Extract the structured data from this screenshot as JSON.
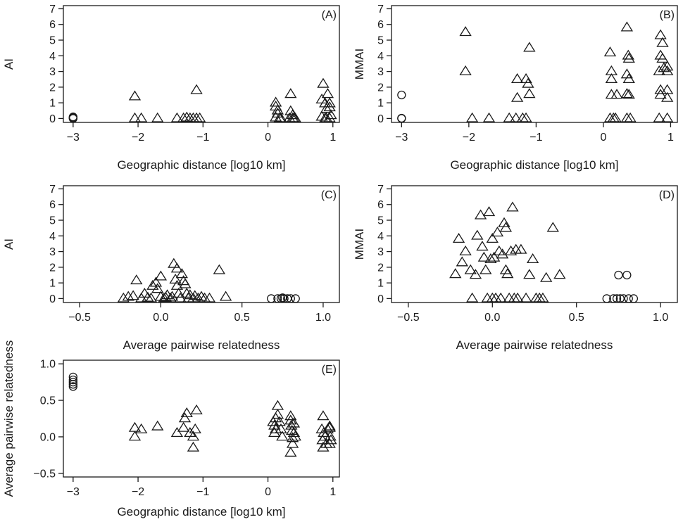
{
  "chart_data": [
    {
      "panel": "(A)",
      "type": "scatter",
      "xlabel": "Geographic distance [log10 km]",
      "ylabel": "AI",
      "xlim": [
        -3.15,
        1.1
      ],
      "ylim": [
        -0.25,
        7.2
      ],
      "xticks": [
        -3,
        -2,
        -1,
        0,
        1
      ],
      "yticks": [
        0,
        1,
        2,
        3,
        4,
        5,
        6,
        7
      ],
      "grid": false,
      "series": [
        {
          "marker": "circle",
          "points": [
            [
              -3,
              0
            ],
            [
              -3,
              0.05
            ],
            [
              -3,
              0.1
            ],
            [
              -3,
              0.02
            ]
          ]
        },
        {
          "marker": "triangle",
          "points": [
            [
              -2.05,
              1.4
            ],
            [
              -2.05,
              0
            ],
            [
              -1.95,
              0
            ],
            [
              -1.7,
              0
            ],
            [
              -1.4,
              0
            ],
            [
              -1.3,
              0
            ],
            [
              -1.25,
              0.05
            ],
            [
              -1.2,
              0
            ],
            [
              -1.15,
              0
            ],
            [
              -1.1,
              0
            ],
            [
              -1.1,
              1.8
            ],
            [
              -1.05,
              0
            ],
            [
              0.12,
              1
            ],
            [
              0.12,
              0.75
            ],
            [
              0.15,
              0.5
            ],
            [
              0.15,
              0.3
            ],
            [
              0.12,
              0.05
            ],
            [
              0.18,
              0
            ],
            [
              0.2,
              0
            ],
            [
              0.35,
              1.55
            ],
            [
              0.35,
              0.45
            ],
            [
              0.38,
              0.2
            ],
            [
              0.38,
              0
            ],
            [
              0.4,
              0
            ],
            [
              0.33,
              0
            ],
            [
              0.42,
              0
            ],
            [
              0.85,
              2.2
            ],
            [
              0.83,
              1.2
            ],
            [
              0.88,
              0.95
            ],
            [
              0.9,
              0.6
            ],
            [
              0.83,
              0.1
            ],
            [
              0.88,
              0
            ],
            [
              0.9,
              0
            ],
            [
              0.92,
              1.55
            ],
            [
              0.95,
              0.95
            ],
            [
              0.95,
              0.7
            ],
            [
              0.97,
              0.2
            ],
            [
              0.95,
              0
            ]
          ]
        }
      ]
    },
    {
      "panel": "(B)",
      "type": "scatter",
      "xlabel": "Geographic distance [log10 km]",
      "ylabel": "MMAI",
      "xlim": [
        -3.15,
        1.1
      ],
      "ylim": [
        -0.25,
        7.2
      ],
      "xticks": [
        -3,
        -2,
        -1,
        0,
        1
      ],
      "yticks": [
        0,
        1,
        2,
        3,
        4,
        5,
        6,
        7
      ],
      "grid": false,
      "series": [
        {
          "marker": "circle",
          "points": [
            [
              -3,
              1.5
            ],
            [
              -3,
              0
            ],
            [
              -3,
              0.02
            ]
          ]
        },
        {
          "marker": "triangle",
          "points": [
            [
              -2.05,
              5.5
            ],
            [
              -2.05,
              3
            ],
            [
              -1.95,
              0
            ],
            [
              -1.7,
              0
            ],
            [
              -1.4,
              0
            ],
            [
              -1.3,
              0
            ],
            [
              -1.28,
              2.5
            ],
            [
              -1.28,
              1.3
            ],
            [
              -1.2,
              0
            ],
            [
              -1.15,
              2.5
            ],
            [
              -1.12,
              2.2
            ],
            [
              -1.1,
              4.5
            ],
            [
              -1.1,
              1.55
            ],
            [
              -1.15,
              0
            ],
            [
              0.1,
              4.2
            ],
            [
              0.12,
              3
            ],
            [
              0.12,
              2.5
            ],
            [
              0.12,
              1.5
            ],
            [
              0.1,
              0
            ],
            [
              0.15,
              0
            ],
            [
              0.18,
              0
            ],
            [
              0.2,
              1.5
            ],
            [
              0.35,
              5.8
            ],
            [
              0.37,
              4
            ],
            [
              0.38,
              3.8
            ],
            [
              0.35,
              2.8
            ],
            [
              0.38,
              2.5
            ],
            [
              0.35,
              1.55
            ],
            [
              0.38,
              1.5
            ],
            [
              0.35,
              0
            ],
            [
              0.4,
              0
            ],
            [
              0.85,
              5.3
            ],
            [
              0.85,
              4
            ],
            [
              0.83,
              3
            ],
            [
              0.85,
              1.8
            ],
            [
              0.85,
              1.5
            ],
            [
              0.83,
              0
            ],
            [
              0.88,
              4.8
            ],
            [
              0.88,
              3.8
            ],
            [
              0.9,
              3.2
            ],
            [
              0.95,
              3.3
            ],
            [
              0.95,
              3
            ],
            [
              0.95,
              1.8
            ],
            [
              0.95,
              1.3
            ],
            [
              0.95,
              0
            ]
          ]
        }
      ]
    },
    {
      "panel": "(C)",
      "type": "scatter",
      "xlabel": "Average pairwise relatedness",
      "ylabel": "AI",
      "xlim": [
        -0.6,
        1.1
      ],
      "ylim": [
        -0.25,
        7.2
      ],
      "xticks": [
        -0.5,
        0.0,
        0.5,
        1.0
      ],
      "xtick_labels": [
        "−0.5",
        "0.0",
        "0.5",
        "1.0"
      ],
      "yticks": [
        0,
        1,
        2,
        3,
        4,
        5,
        6,
        7
      ],
      "grid": false,
      "series": [
        {
          "marker": "circle",
          "points": [
            [
              0.68,
              0
            ],
            [
              0.72,
              0
            ],
            [
              0.74,
              0
            ],
            [
              0.75,
              0.05
            ],
            [
              0.76,
              0
            ],
            [
              0.78,
              0
            ],
            [
              0.8,
              0
            ],
            [
              0.83,
              0
            ]
          ]
        },
        {
          "marker": "triangle",
          "points": [
            [
              -0.23,
              0
            ],
            [
              -0.2,
              0.1
            ],
            [
              -0.17,
              0.15
            ],
            [
              -0.15,
              1.15
            ],
            [
              -0.12,
              0
            ],
            [
              -0.1,
              0.3
            ],
            [
              -0.08,
              0.05
            ],
            [
              -0.06,
              0
            ],
            [
              -0.05,
              0.8
            ],
            [
              -0.03,
              1.0
            ],
            [
              -0.02,
              0.6
            ],
            [
              0,
              1.4
            ],
            [
              0,
              0.1
            ],
            [
              0.02,
              0
            ],
            [
              0.03,
              0.05
            ],
            [
              0.04,
              0.2
            ],
            [
              0.06,
              0
            ],
            [
              0.07,
              0.1
            ],
            [
              0.08,
              2.2
            ],
            [
              0.09,
              1.2
            ],
            [
              0.1,
              1.9
            ],
            [
              0.1,
              0.8
            ],
            [
              0.11,
              0.3
            ],
            [
              0.12,
              0
            ],
            [
              0.13,
              1.55
            ],
            [
              0.14,
              1.1
            ],
            [
              0.15,
              0.9
            ],
            [
              0.16,
              0.3
            ],
            [
              0.17,
              0
            ],
            [
              0.18,
              0.2
            ],
            [
              0.2,
              0
            ],
            [
              0.21,
              0.15
            ],
            [
              0.23,
              0
            ],
            [
              0.25,
              0.1
            ],
            [
              0.27,
              0
            ],
            [
              0.3,
              0
            ],
            [
              0.36,
              1.8
            ],
            [
              0.4,
              0.1
            ]
          ]
        }
      ]
    },
    {
      "panel": "(D)",
      "type": "scatter",
      "xlabel": "Average pairwise relatedness",
      "ylabel": "MMAI",
      "xlim": [
        -0.6,
        1.1
      ],
      "ylim": [
        -0.25,
        7.2
      ],
      "xticks": [
        -0.5,
        0.0,
        0.5,
        1.0
      ],
      "xtick_labels": [
        "−0.5",
        "0.0",
        "0.5",
        "1.0"
      ],
      "yticks": [
        0,
        1,
        2,
        3,
        4,
        5,
        6,
        7
      ],
      "grid": false,
      "series": [
        {
          "marker": "circle",
          "points": [
            [
              0.68,
              0
            ],
            [
              0.72,
              0
            ],
            [
              0.74,
              0
            ],
            [
              0.75,
              1.5
            ],
            [
              0.76,
              0
            ],
            [
              0.78,
              0
            ],
            [
              0.8,
              1.5
            ],
            [
              0.81,
              0
            ],
            [
              0.84,
              0
            ]
          ]
        },
        {
          "marker": "triangle",
          "points": [
            [
              -0.22,
              1.55
            ],
            [
              -0.2,
              3.8
            ],
            [
              -0.18,
              2.3
            ],
            [
              -0.16,
              3
            ],
            [
              -0.13,
              1.8
            ],
            [
              -0.12,
              0
            ],
            [
              -0.1,
              1.5
            ],
            [
              -0.09,
              4
            ],
            [
              -0.07,
              5.3
            ],
            [
              -0.06,
              3.3
            ],
            [
              -0.05,
              2.6
            ],
            [
              -0.04,
              1.8
            ],
            [
              -0.03,
              0
            ],
            [
              -0.02,
              5.5
            ],
            [
              -0.01,
              2.5
            ],
            [
              0,
              3.8
            ],
            [
              0,
              0
            ],
            [
              0.01,
              2.6
            ],
            [
              0.02,
              0
            ],
            [
              0.03,
              4.2
            ],
            [
              0.04,
              3
            ],
            [
              0.05,
              0
            ],
            [
              0.06,
              2.8
            ],
            [
              0.07,
              4.8
            ],
            [
              0.08,
              1.8
            ],
            [
              0.08,
              4.5
            ],
            [
              0.09,
              1.55
            ],
            [
              0.1,
              0
            ],
            [
              0.11,
              3.0
            ],
            [
              0.12,
              5.8
            ],
            [
              0.13,
              0
            ],
            [
              0.14,
              3.1
            ],
            [
              0.15,
              0
            ],
            [
              0.17,
              3.1
            ],
            [
              0.2,
              0
            ],
            [
              0.22,
              1.5
            ],
            [
              0.24,
              2.5
            ],
            [
              0.26,
              0
            ],
            [
              0.28,
              0
            ],
            [
              0.3,
              0
            ],
            [
              0.32,
              1.3
            ],
            [
              0.36,
              4.5
            ],
            [
              0.4,
              1.5
            ]
          ]
        }
      ]
    },
    {
      "panel": "(E)",
      "type": "scatter",
      "xlabel": "Geographic distance [log10 km]",
      "ylabel": "Average pairwise relatedness",
      "xlim": [
        -3.15,
        1.1
      ],
      "ylim": [
        -0.55,
        1.05
      ],
      "xticks": [
        -3,
        -2,
        -1,
        0,
        1
      ],
      "yticks": [
        -0.5,
        0.0,
        0.5,
        1.0
      ],
      "ytick_labels": [
        "−0.5",
        "0.0",
        "0.5",
        "1.0"
      ],
      "grid": false,
      "series": [
        {
          "marker": "circle",
          "points": [
            [
              -3,
              0.82
            ],
            [
              -3,
              0.78
            ],
            [
              -3,
              0.75
            ],
            [
              -3,
              0.72
            ],
            [
              -3,
              0.69
            ]
          ]
        },
        {
          "marker": "triangle",
          "points": [
            [
              -2.05,
              0.12
            ],
            [
              -2.05,
              0
            ],
            [
              -1.95,
              0.1
            ],
            [
              -1.7,
              0.14
            ],
            [
              -1.4,
              0.05
            ],
            [
              -1.3,
              0.12
            ],
            [
              -1.28,
              0.25
            ],
            [
              -1.25,
              0.32
            ],
            [
              -1.2,
              0.05
            ],
            [
              -1.15,
              -0.15
            ],
            [
              -1.15,
              0
            ],
            [
              -1.12,
              0.1
            ],
            [
              -1.1,
              0.36
            ],
            [
              0.08,
              0.2
            ],
            [
              0.1,
              0.15
            ],
            [
              0.1,
              0.05
            ],
            [
              0.12,
              0.1
            ],
            [
              0.12,
              0.25
            ],
            [
              0.15,
              0.42
            ],
            [
              0.15,
              0.3
            ],
            [
              0.18,
              0.2
            ],
            [
              0.2,
              0.1
            ],
            [
              0.22,
              0
            ],
            [
              0.35,
              0.28
            ],
            [
              0.35,
              0.22
            ],
            [
              0.36,
              0.15
            ],
            [
              0.37,
              0.08
            ],
            [
              0.38,
              -0.02
            ],
            [
              0.38,
              -0.1
            ],
            [
              0.4,
              0.05
            ],
            [
              0.4,
              0.18
            ],
            [
              0.35,
              -0.22
            ],
            [
              0.42,
              0
            ],
            [
              0.85,
              0.28
            ],
            [
              0.83,
              0.1
            ],
            [
              0.84,
              -0.05
            ],
            [
              0.85,
              -0.15
            ],
            [
              0.86,
              0.05
            ],
            [
              0.88,
              0
            ],
            [
              0.9,
              -0.1
            ],
            [
              0.92,
              0.1
            ],
            [
              0.95,
              0.14
            ],
            [
              0.95,
              0.12
            ],
            [
              0.96,
              0
            ],
            [
              0.97,
              -0.05
            ],
            [
              0.95,
              -0.1
            ]
          ]
        }
      ]
    }
  ]
}
